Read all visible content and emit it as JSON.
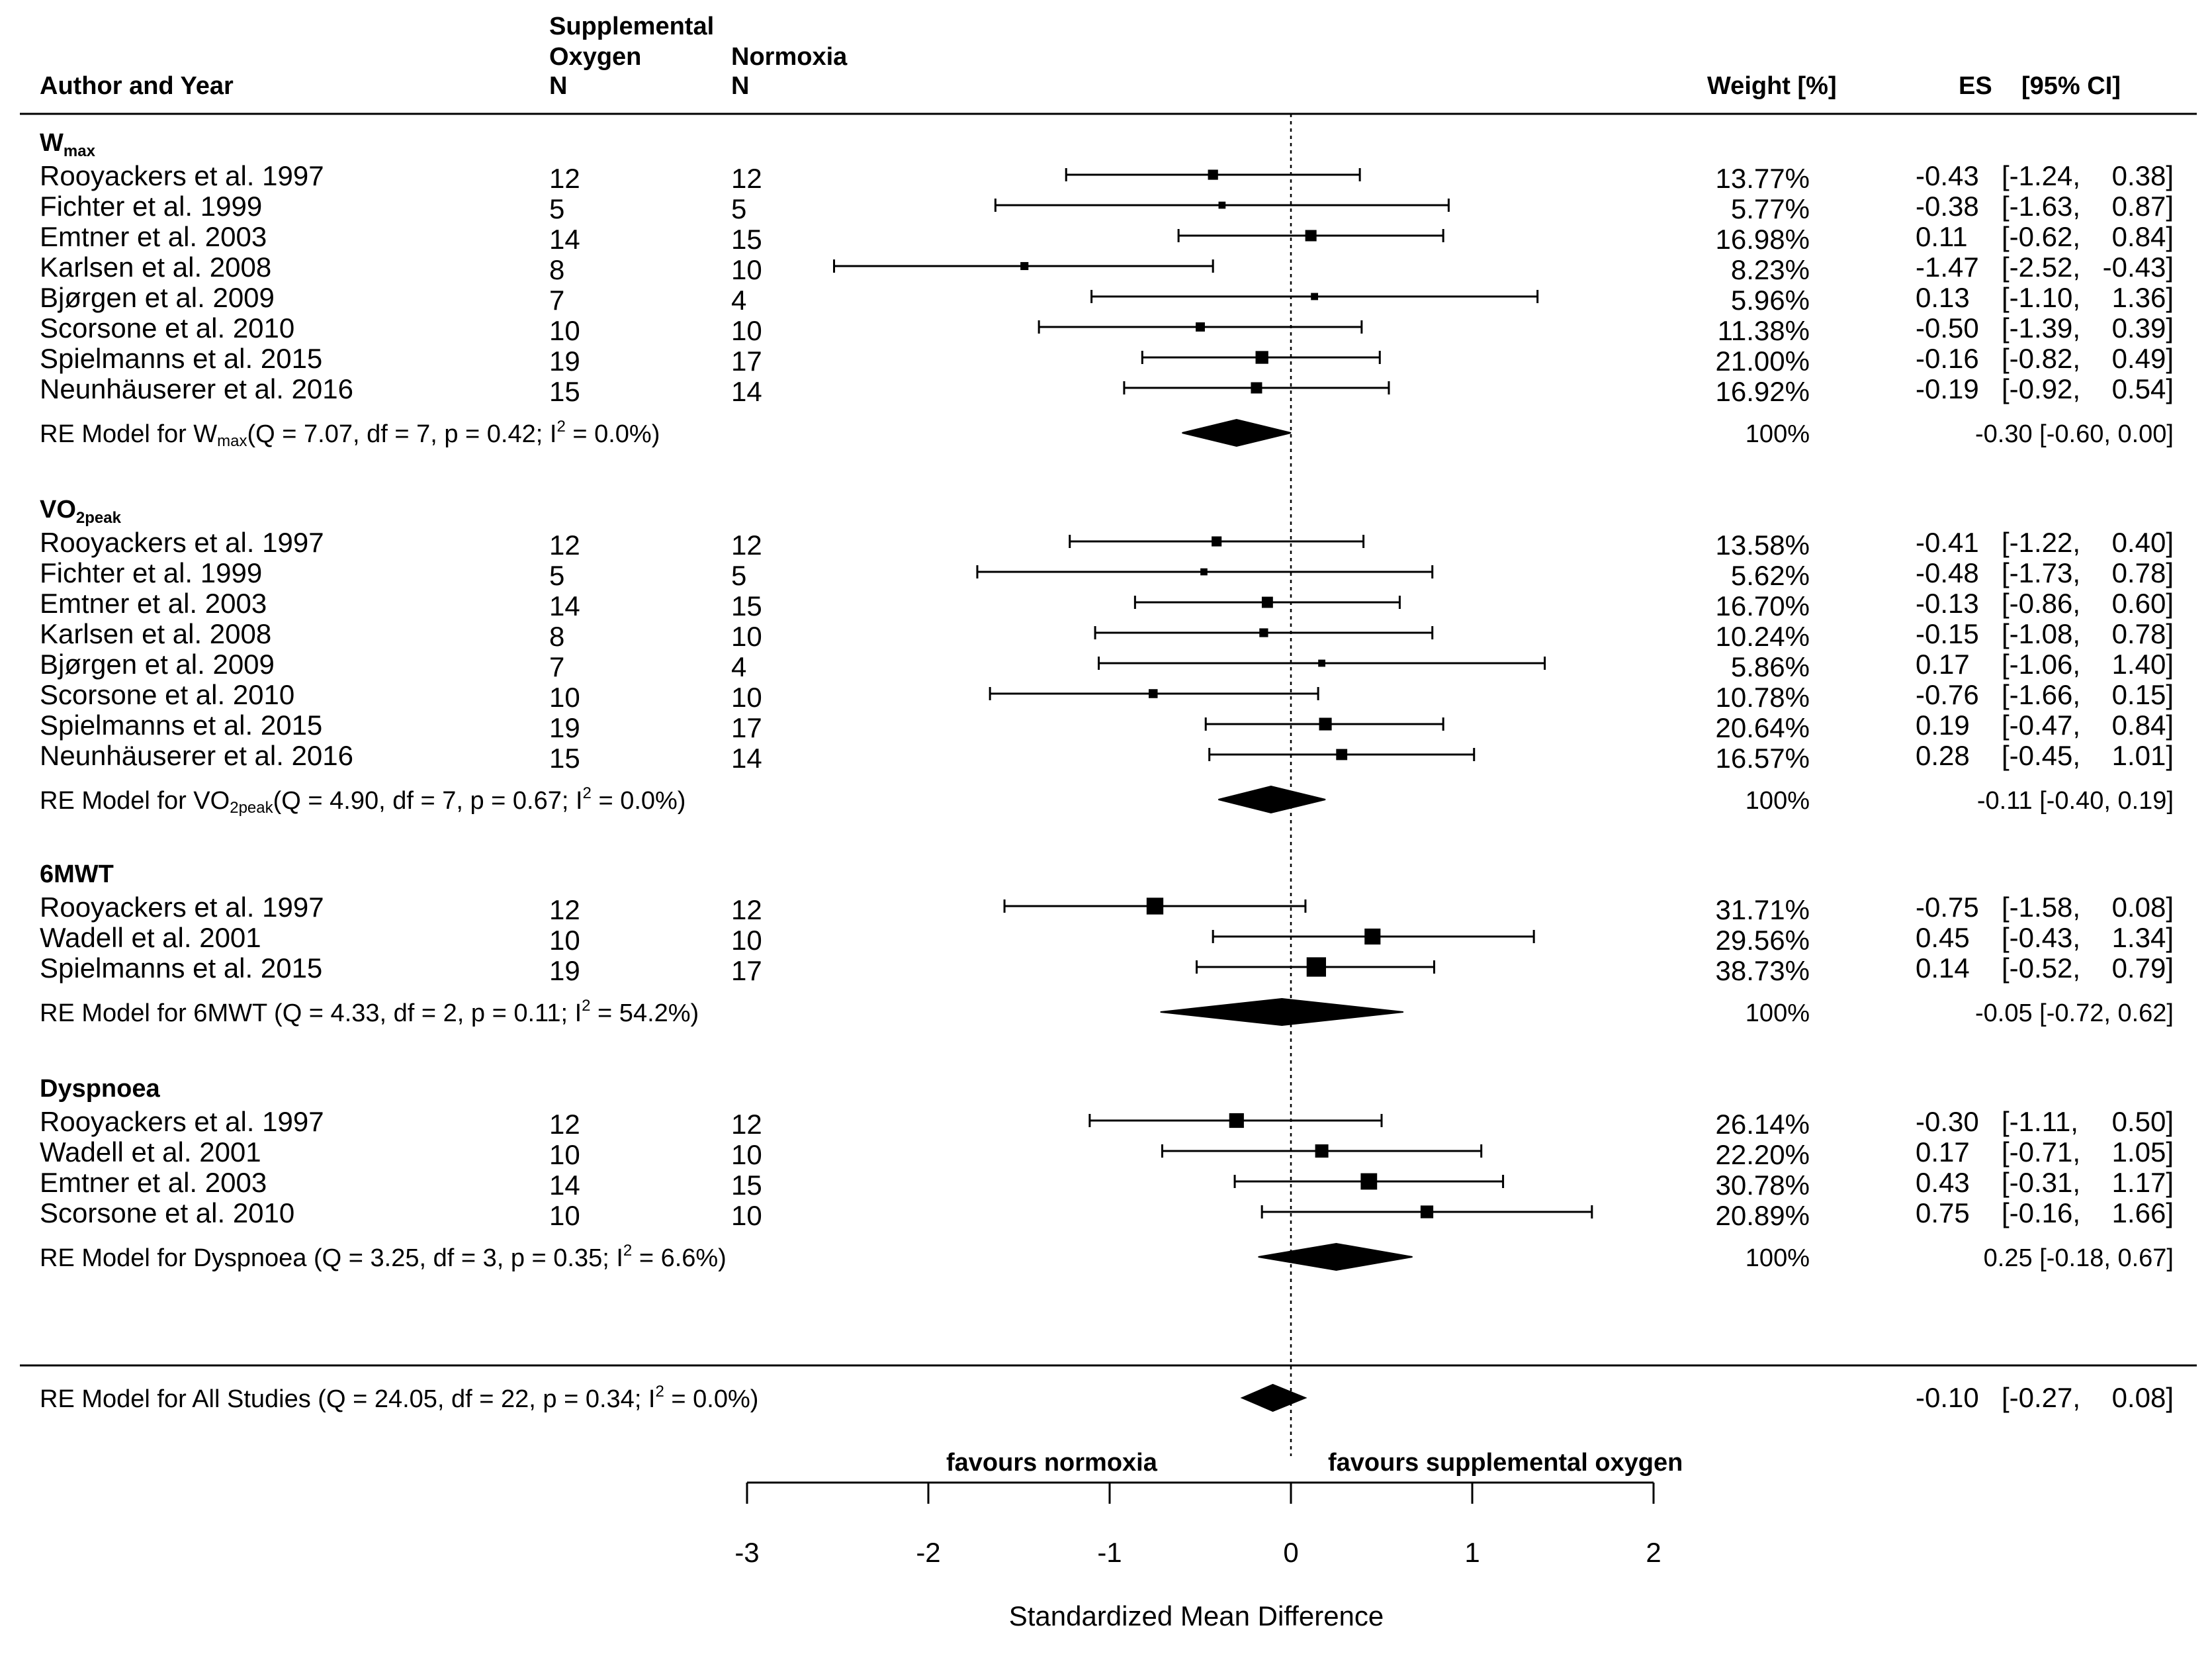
{
  "chart_data": {
    "type": "forest",
    "headers": {
      "author": "Author and Year",
      "supplemental_line1": "Supplemental",
      "supplemental_line2": "Oxygen",
      "supplemental_n": "N",
      "normoxia": "Normoxia",
      "normoxia_n": "N",
      "weight": "Weight [%]",
      "es": "ES",
      "ci": "[95%   CI]"
    },
    "groups": [
      {
        "id": "wmax",
        "name": "W",
        "name_sub": "max",
        "studies": [
          {
            "author": "Rooyackers et al. 1997",
            "n_o2": "12",
            "n_norm": "12",
            "weight": "13.77%",
            "weight_value": 13.77,
            "es": -0.43,
            "lo": -1.24,
            "hi": 0.38,
            "es_label": "-0.43",
            "lo_label": "[-1.24,",
            "hi_label": "0.38]"
          },
          {
            "author": "Fichter et al. 1999",
            "n_o2": "5",
            "n_norm": "5",
            "weight": "5.77%",
            "weight_value": 5.77,
            "es": -0.38,
            "lo": -1.63,
            "hi": 0.87,
            "es_label": "-0.38",
            "lo_label": "[-1.63,",
            "hi_label": "0.87]"
          },
          {
            "author": "Emtner et al. 2003",
            "n_o2": "14",
            "n_norm": "15",
            "weight": "16.98%",
            "weight_value": 16.98,
            "es": 0.11,
            "lo": -0.62,
            "hi": 0.84,
            "es_label": "0.11",
            "lo_label": "[-0.62,",
            "hi_label": "0.84]"
          },
          {
            "author": "Karlsen et al. 2008",
            "n_o2": "8",
            "n_norm": "10",
            "weight": "8.23%",
            "weight_value": 8.23,
            "es": -1.47,
            "lo": -2.52,
            "hi": -0.43,
            "es_label": "-1.47",
            "lo_label": "[-2.52,",
            "hi_label": "-0.43]"
          },
          {
            "author": "Bjørgen et al. 2009",
            "n_o2": "7",
            "n_norm": "4",
            "weight": "5.96%",
            "weight_value": 5.96,
            "es": 0.13,
            "lo": -1.1,
            "hi": 1.36,
            "es_label": "0.13",
            "lo_label": "[-1.10,",
            "hi_label": "1.36]"
          },
          {
            "author": "Scorsone et al. 2010",
            "n_o2": "10",
            "n_norm": "10",
            "weight": "11.38%",
            "weight_value": 11.38,
            "es": -0.5,
            "lo": -1.39,
            "hi": 0.39,
            "es_label": "-0.50",
            "lo_label": "[-1.39,",
            "hi_label": "0.39]"
          },
          {
            "author": "Spielmanns et al. 2015",
            "n_o2": "19",
            "n_norm": "17",
            "weight": "21.00%",
            "weight_value": 21.0,
            "es": -0.16,
            "lo": -0.82,
            "hi": 0.49,
            "es_label": "-0.16",
            "lo_label": "[-0.82,",
            "hi_label": "0.49]"
          },
          {
            "author": "Neunhäuserer et al. 2016",
            "n_o2": "15",
            "n_norm": "14",
            "weight": "16.92%",
            "weight_value": 16.92,
            "es": -0.19,
            "lo": -0.92,
            "hi": 0.54,
            "es_label": "-0.19",
            "lo_label": "[-0.92,",
            "hi_label": "0.54]"
          }
        ],
        "model": {
          "prefix": "RE Model for W",
          "prefix_sub": "max",
          "stats_a": "(Q = 7.07, df = 7, p = 0.42; I",
          "stats_sup": "2",
          "stats_b": " = 0.0%)",
          "weight": "100%",
          "es": -0.3,
          "lo": -0.6,
          "hi": 0.0,
          "ci_label": "-0.30 [-0.60, 0.00]"
        }
      },
      {
        "id": "vo2peak",
        "name": "VO",
        "name_sub": "2peak",
        "studies": [
          {
            "author": "Rooyackers et al. 1997",
            "n_o2": "12",
            "n_norm": "12",
            "weight": "13.58%",
            "weight_value": 13.58,
            "es": -0.41,
            "lo": -1.22,
            "hi": 0.4,
            "es_label": "-0.41",
            "lo_label": "[-1.22,",
            "hi_label": "0.40]"
          },
          {
            "author": "Fichter et al. 1999",
            "n_o2": "5",
            "n_norm": "5",
            "weight": "5.62%",
            "weight_value": 5.62,
            "es": -0.48,
            "lo": -1.73,
            "hi": 0.78,
            "es_label": "-0.48",
            "lo_label": "[-1.73,",
            "hi_label": "0.78]"
          },
          {
            "author": "Emtner et al. 2003",
            "n_o2": "14",
            "n_norm": "15",
            "weight": "16.70%",
            "weight_value": 16.7,
            "es": -0.13,
            "lo": -0.86,
            "hi": 0.6,
            "es_label": "-0.13",
            "lo_label": "[-0.86,",
            "hi_label": "0.60]"
          },
          {
            "author": "Karlsen et al. 2008",
            "n_o2": "8",
            "n_norm": "10",
            "weight": "10.24%",
            "weight_value": 10.24,
            "es": -0.15,
            "lo": -1.08,
            "hi": 0.78,
            "es_label": "-0.15",
            "lo_label": "[-1.08,",
            "hi_label": "0.78]"
          },
          {
            "author": "Bjørgen et al. 2009",
            "n_o2": "7",
            "n_norm": "4",
            "weight": "5.86%",
            "weight_value": 5.86,
            "es": 0.17,
            "lo": -1.06,
            "hi": 1.4,
            "es_label": "0.17",
            "lo_label": "[-1.06,",
            "hi_label": "1.40]"
          },
          {
            "author": "Scorsone et al. 2010",
            "n_o2": "10",
            "n_norm": "10",
            "weight": "10.78%",
            "weight_value": 10.78,
            "es": -0.76,
            "lo": -1.66,
            "hi": 0.15,
            "es_label": "-0.76",
            "lo_label": "[-1.66,",
            "hi_label": "0.15]"
          },
          {
            "author": "Spielmanns et al. 2015",
            "n_o2": "19",
            "n_norm": "17",
            "weight": "20.64%",
            "weight_value": 20.64,
            "es": 0.19,
            "lo": -0.47,
            "hi": 0.84,
            "es_label": "0.19",
            "lo_label": "[-0.47,",
            "hi_label": "0.84]"
          },
          {
            "author": "Neunhäuserer et al. 2016",
            "n_o2": "15",
            "n_norm": "14",
            "weight": "16.57%",
            "weight_value": 16.57,
            "es": 0.28,
            "lo": -0.45,
            "hi": 1.01,
            "es_label": "0.28",
            "lo_label": "[-0.45,",
            "hi_label": "1.01]"
          }
        ],
        "model": {
          "prefix": "RE Model for VO",
          "prefix_sub": "2peak",
          "stats_a": "(Q = 4.90, df = 7, p = 0.67; I",
          "stats_sup": "2",
          "stats_b": " = 0.0%)",
          "weight": "100%",
          "es": -0.11,
          "lo": -0.4,
          "hi": 0.19,
          "ci_label": "-0.11 [-0.40, 0.19]"
        }
      },
      {
        "id": "6mwt",
        "name": "6MWT",
        "name_sub": "",
        "studies": [
          {
            "author": "Rooyackers et al. 1997",
            "n_o2": "12",
            "n_norm": "12",
            "weight": "31.71%",
            "weight_value": 31.71,
            "es": -0.75,
            "lo": -1.58,
            "hi": 0.08,
            "es_label": "-0.75",
            "lo_label": "[-1.58,",
            "hi_label": "0.08]"
          },
          {
            "author": "Wadell et al. 2001",
            "n_o2": "10",
            "n_norm": "10",
            "weight": "29.56%",
            "weight_value": 29.56,
            "es": 0.45,
            "lo": -0.43,
            "hi": 1.34,
            "es_label": "0.45",
            "lo_label": "[-0.43,",
            "hi_label": "1.34]"
          },
          {
            "author": "Spielmanns et al. 2015",
            "n_o2": "19",
            "n_norm": "17",
            "weight": "38.73%",
            "weight_value": 38.73,
            "es": 0.14,
            "lo": -0.52,
            "hi": 0.79,
            "es_label": "0.14",
            "lo_label": "[-0.52,",
            "hi_label": "0.79]"
          }
        ],
        "model": {
          "prefix": "RE Model for 6MWT",
          "prefix_sub": "",
          "stats_a": " (Q = 4.33, df = 2, p = 0.11; I",
          "stats_sup": "2",
          "stats_b": " = 54.2%)",
          "weight": "100%",
          "es": -0.05,
          "lo": -0.72,
          "hi": 0.62,
          "ci_label": "-0.05 [-0.72, 0.62]"
        }
      },
      {
        "id": "dyspnoea",
        "name": "Dyspnoea",
        "name_sub": "",
        "studies": [
          {
            "author": "Rooyackers et al. 1997",
            "n_o2": "12",
            "n_norm": "12",
            "weight": "26.14%",
            "weight_value": 26.14,
            "es": -0.3,
            "lo": -1.11,
            "hi": 0.5,
            "es_label": "-0.30",
            "lo_label": "[-1.11,",
            "hi_label": "0.50]"
          },
          {
            "author": "Wadell et al. 2001",
            "n_o2": "10",
            "n_norm": "10",
            "weight": "22.20%",
            "weight_value": 22.2,
            "es": 0.17,
            "lo": -0.71,
            "hi": 1.05,
            "es_label": "0.17",
            "lo_label": "[-0.71,",
            "hi_label": "1.05]"
          },
          {
            "author": "Emtner et al. 2003",
            "n_o2": "14",
            "n_norm": "15",
            "weight": "30.78%",
            "weight_value": 30.78,
            "es": 0.43,
            "lo": -0.31,
            "hi": 1.17,
            "es_label": "0.43",
            "lo_label": "[-0.31,",
            "hi_label": "1.17]"
          },
          {
            "author": "Scorsone et al. 2010",
            "n_o2": "10",
            "n_norm": "10",
            "weight": "20.89%",
            "weight_value": 20.89,
            "es": 0.75,
            "lo": -0.16,
            "hi": 1.66,
            "es_label": "0.75",
            "lo_label": "[-0.16,",
            "hi_label": "1.66]"
          }
        ],
        "model": {
          "prefix": "RE Model for Dyspnoea",
          "prefix_sub": "",
          "stats_a": " (Q = 3.25, df = 3, p = 0.35; I",
          "stats_sup": "2",
          "stats_b": " = 6.6%)",
          "weight": "100%",
          "es": 0.25,
          "lo": -0.18,
          "hi": 0.67,
          "ci_label": "0.25 [-0.18, 0.67]"
        }
      }
    ],
    "overall": {
      "prefix": "RE Model for All Studies",
      "stats_a": " (Q = 24.05, df = 22, p = 0.34; I",
      "stats_sup": "2",
      "stats_b": " = 0.0%)",
      "es": -0.1,
      "lo": -0.27,
      "hi": 0.08,
      "es_label": "-0.10",
      "lo_label": "[-0.27,",
      "hi_label": "0.08]"
    },
    "x_axis": {
      "label": "Standardized Mean Difference",
      "ticks": [
        -3,
        -2,
        -1,
        0,
        1,
        2
      ],
      "xlim": [
        -3,
        2
      ],
      "reference_line": 0
    },
    "favours_left": "favours normoxia",
    "favours_right": "favours supplemental oxygen"
  }
}
